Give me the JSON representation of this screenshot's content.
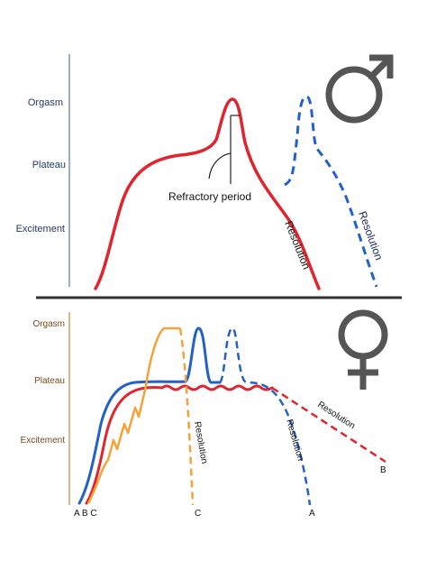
{
  "male": {
    "stage_labels": [
      "Orgasm",
      "Plateau",
      "Excitement"
    ],
    "annotation": "Refractory period",
    "resolution_labels": [
      "Resolution",
      "Resolution"
    ],
    "symbol": "male-symbol-icon"
  },
  "female": {
    "stage_labels": [
      "Orgasm",
      "Plateau",
      "Excitement"
    ],
    "resolution_labels": [
      "Resolution",
      "Resolution",
      "Resolution"
    ],
    "curve_labels": {
      "A": "A",
      "B": "B",
      "C": "C",
      "start": "A B C"
    },
    "symbol": "female-symbol-icon"
  },
  "colors": {
    "male_axis": "#5a7a9a",
    "female_axis": "#c8873a",
    "female_stage_text": "#7a4a1c",
    "red": "#e0252e",
    "blue": "#2461c7",
    "orange": "#f2a33a",
    "divider": "#333333",
    "symbol": "#555555"
  }
}
